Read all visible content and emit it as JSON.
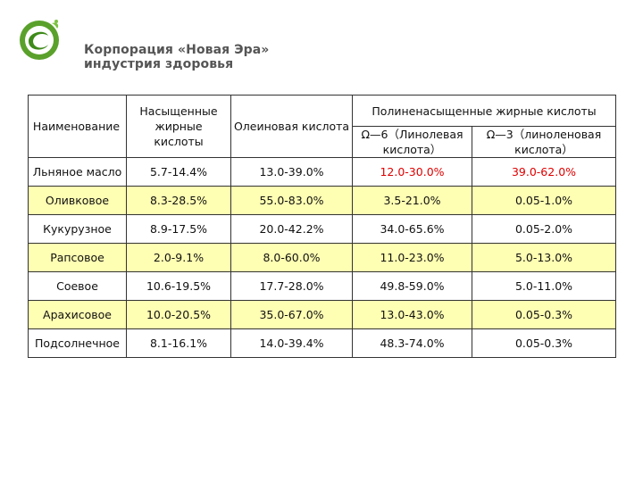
{
  "header": {
    "brand_text": "Корпорация «Новая Эра» индустрия здоровья",
    "logo_color": "#5aa12b"
  },
  "table": {
    "headers": {
      "name": "Наименование",
      "saturated": "Насыщенные жирные кислоты",
      "oleic": "Олеиновая кислота",
      "polyunsaturated": "Полиненасыщенные жирные кислоты",
      "omega6": "Ω—6（Линолевая кислота）",
      "omega3": "Ω—3（линоленовая кислота）"
    },
    "rows": [
      {
        "name": "Льняное масло",
        "saturated": "5.7-14.4%",
        "oleic": "13.0-39.0%",
        "omega6": "12.0-30.0%",
        "omega3": "39.0-62.0%"
      },
      {
        "name": "Оливковое",
        "saturated": "8.3-28.5%",
        "oleic": "55.0-83.0%",
        "omega6": "3.5-21.0%",
        "omega3": "0.05-1.0%"
      },
      {
        "name": "Кукурузное",
        "saturated": "8.9-17.5%",
        "oleic": "20.0-42.2%",
        "omega6": "34.0-65.6%",
        "omega3": "0.05-2.0%"
      },
      {
        "name": "Рапсовое",
        "saturated": "2.0-9.1%",
        "oleic": "8.0-60.0%",
        "omega6": "11.0-23.0%",
        "omega3": "5.0-13.0%"
      },
      {
        "name": "Соевое",
        "saturated": "10.6-19.5%",
        "oleic": "17.7-28.0%",
        "omega6": "49.8-59.0%",
        "omega3": "5.0-11.0%"
      },
      {
        "name": "Арахисовое",
        "saturated": "10.0-20.5%",
        "oleic": "35.0-67.0%",
        "omega6": "13.0-43.0%",
        "omega3": "0.05-0.3%"
      },
      {
        "name": "Подсолнечное",
        "saturated": "8.1-16.1%",
        "oleic": "14.0-39.4%",
        "omega6": "48.3-74.0%",
        "omega3": "0.05-0.3%"
      }
    ],
    "highlight_row_color": "#ffffb3",
    "highlight_text_color": "#e00000"
  }
}
